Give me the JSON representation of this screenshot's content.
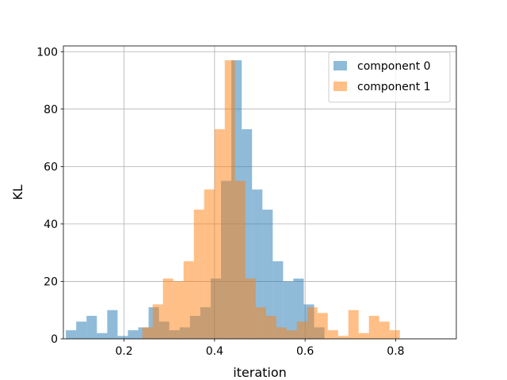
{
  "chart_data": {
    "type": "histogram",
    "title": "",
    "xlabel": "iteration",
    "ylabel": "KL",
    "xlim": [
      0.066,
      0.934
    ],
    "ylim": [
      0,
      102
    ],
    "grid": true,
    "legend_placement": "top-right",
    "x_ticks": [
      {
        "value": 0.2,
        "label": "0.2"
      },
      {
        "value": 0.4,
        "label": "0.4"
      },
      {
        "value": 0.6,
        "label": "0.6"
      },
      {
        "value": 0.8,
        "label": "0.8"
      }
    ],
    "y_ticks": [
      {
        "value": 0,
        "label": "0"
      },
      {
        "value": 20,
        "label": "20"
      },
      {
        "value": 40,
        "label": "40"
      },
      {
        "value": 60,
        "label": "60"
      },
      {
        "value": 80,
        "label": "80"
      },
      {
        "value": 100,
        "label": "100"
      }
    ],
    "series": [
      {
        "name": "component 0",
        "color": "#1f77b4",
        "opacity": 0.5,
        "bin_start": 0.0715,
        "bin_width": 0.02285,
        "counts": [
          3,
          6,
          8,
          2,
          10,
          1,
          3,
          4,
          11,
          6,
          3,
          4,
          8,
          11,
          21,
          55,
          97,
          73,
          52,
          45,
          27,
          20,
          21,
          12,
          4
        ]
      },
      {
        "name": "component 1",
        "color": "#ff7f0e",
        "opacity": 0.5,
        "bin_start": 0.2405,
        "bin_width": 0.02275,
        "counts": [
          4,
          12,
          21,
          20,
          27,
          45,
          52,
          73,
          97,
          55,
          21,
          11,
          8,
          4,
          3,
          6,
          11,
          9,
          3,
          1,
          10,
          2,
          8,
          6,
          3
        ]
      }
    ]
  }
}
